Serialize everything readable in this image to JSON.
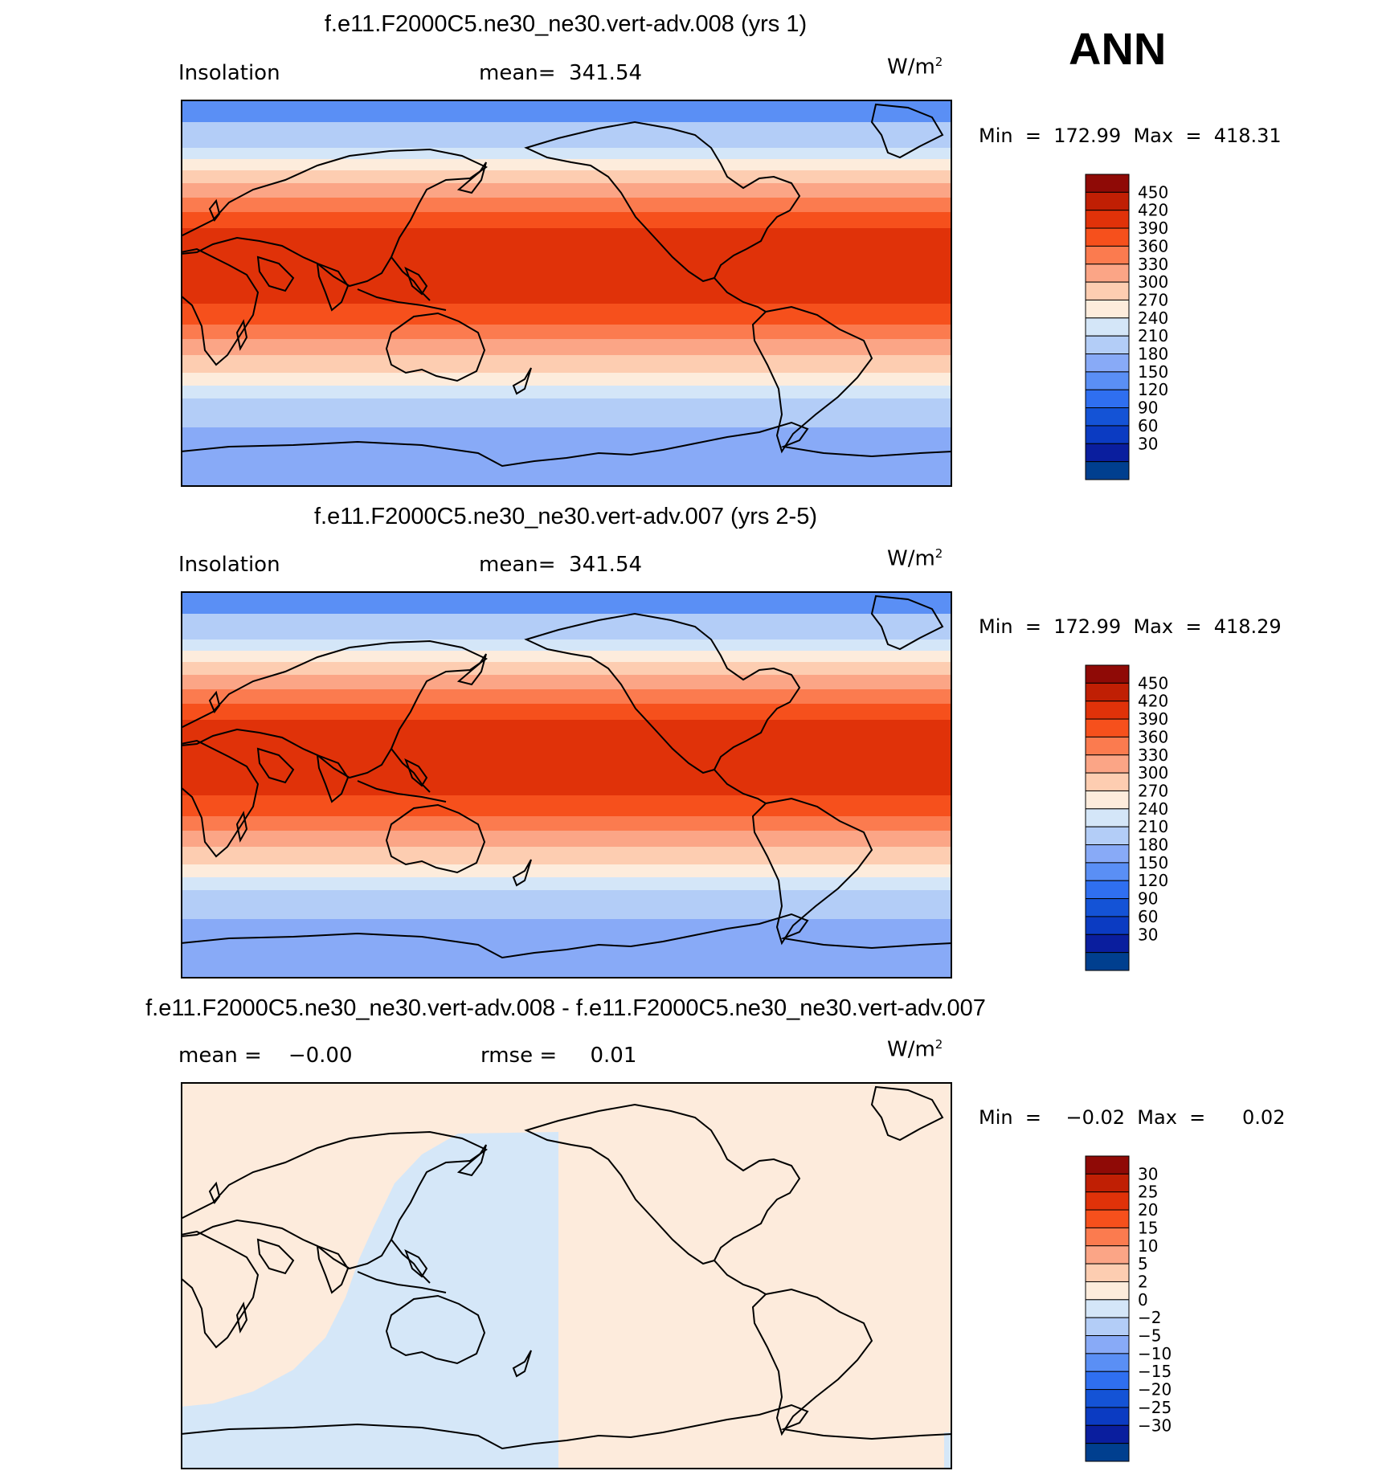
{
  "season": "ANN",
  "panels": [
    {
      "title": "f.e11.F2000C5.ne30_ne30.vert-adv.008 (yrs 1)",
      "left_label": "Insolation",
      "center_label": "mean=  341.54",
      "units": "W/m",
      "units_sup": "2",
      "minmax": "Min  =  172.99  Max  =  418.31",
      "colorbar_labels": [
        "450",
        "420",
        "390",
        "360",
        "330",
        "300",
        "270",
        "240",
        "210",
        "180",
        "150",
        "120",
        "90",
        "60",
        "30"
      ],
      "colors": [
        "#003f8f",
        "#0a1e9e",
        "#0b3bc2",
        "#1453d6",
        "#2f6ff0",
        "#5a8ff5",
        "#88aaf7",
        "#b3cdf7",
        "#d4e6f8",
        "#fdecdc",
        "#fdcdb1",
        "#fba586",
        "#fb7b4f",
        "#f6501c",
        "#e03209",
        "#c01f04",
        "#8f0a06"
      ]
    },
    {
      "title": "f.e11.F2000C5.ne30_ne30.vert-adv.007 (yrs 2-5)",
      "left_label": "Insolation",
      "center_label": "mean=  341.54",
      "units": "W/m",
      "units_sup": "2",
      "minmax": "Min  =  172.99  Max  =  418.29",
      "colorbar_labels": [
        "450",
        "420",
        "390",
        "360",
        "330",
        "300",
        "270",
        "240",
        "210",
        "180",
        "150",
        "120",
        "90",
        "60",
        "30"
      ],
      "colors": [
        "#003f8f",
        "#0a1e9e",
        "#0b3bc2",
        "#1453d6",
        "#2f6ff0",
        "#5a8ff5",
        "#88aaf7",
        "#b3cdf7",
        "#d4e6f8",
        "#fdecdc",
        "#fdcdb1",
        "#fba586",
        "#fb7b4f",
        "#f6501c",
        "#e03209",
        "#c01f04",
        "#8f0a06"
      ]
    },
    {
      "title": "f.e11.F2000C5.ne30_ne30.vert-adv.008 - f.e11.F2000C5.ne30_ne30.vert-adv.007",
      "left_label": "mean =    −0.00",
      "center_label": "rmse =     0.01",
      "units": "W/m",
      "units_sup": "2",
      "minmax": "Min  =    −0.02  Max  =      0.02",
      "colorbar_labels": [
        "30",
        "25",
        "20",
        "15",
        "10",
        "5",
        "2",
        "0",
        "−2",
        "−5",
        "−10",
        "−15",
        "−20",
        "−25",
        "−30"
      ],
      "colors": [
        "#003f8f",
        "#0a1e9e",
        "#0b3bc2",
        "#1453d6",
        "#2f6ff0",
        "#5a8ff5",
        "#88aaf7",
        "#b3cdf7",
        "#d4e6f8",
        "#fdecdc",
        "#fdcdb1",
        "#fba586",
        "#fb7b4f",
        "#f6501c",
        "#e03209",
        "#c01f04",
        "#8f0a06"
      ]
    }
  ]
}
